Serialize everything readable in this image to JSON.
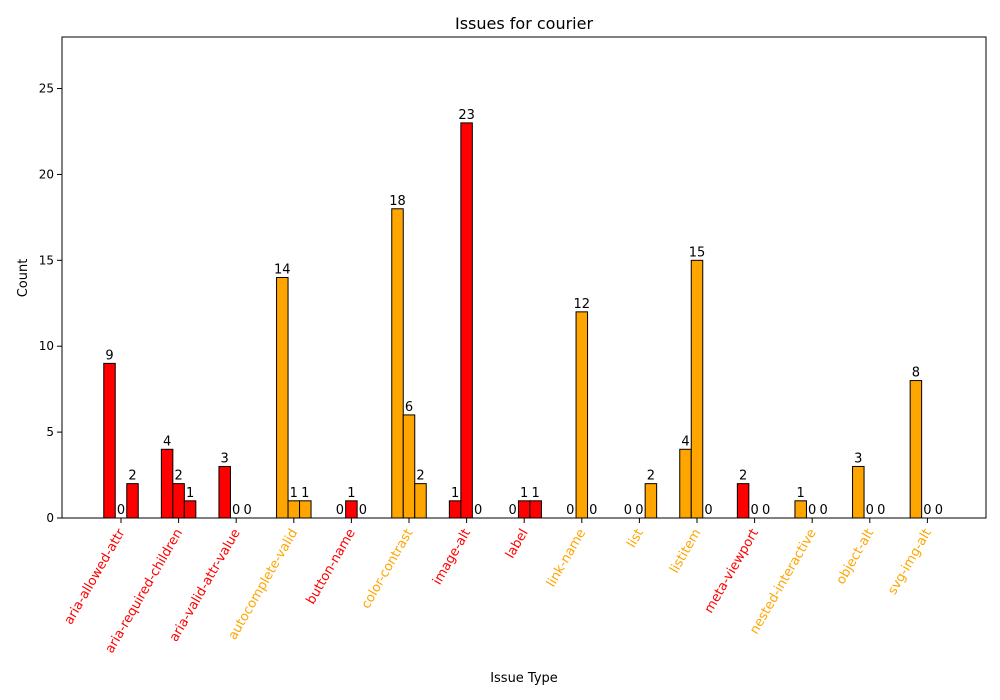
{
  "chart_data": {
    "type": "bar",
    "title": "Issues for courier",
    "xlabel": "Issue Type",
    "ylabel": "Count",
    "ylim": [
      0,
      28
    ],
    "yticks": [
      0,
      5,
      10,
      15,
      20,
      25
    ],
    "grid": false,
    "categories": [
      "aria-allowed-attr",
      "aria-required-children",
      "aria-valid-attr-value",
      "autocomplete-valid",
      "button-name",
      "color-contrast",
      "image-alt",
      "label",
      "link-name",
      "list",
      "listitem",
      "meta-viewport",
      "nested-interactive",
      "object-alt",
      "svg-img-alt"
    ],
    "category_colors": [
      "#ff0000",
      "#ff0000",
      "#ff0000",
      "#ffa500",
      "#ff0000",
      "#ffa500",
      "#ff0000",
      "#ff0000",
      "#ffa500",
      "#ffa500",
      "#ffa500",
      "#ff0000",
      "#ffa500",
      "#ffa500",
      "#ffa500"
    ],
    "series": [
      {
        "values": [
          9,
          4,
          3,
          14,
          0,
          18,
          1,
          0,
          0,
          0,
          4,
          2,
          1,
          3,
          8
        ]
      },
      {
        "values": [
          0,
          2,
          0,
          1,
          1,
          6,
          23,
          1,
          12,
          0,
          15,
          0,
          0,
          0,
          0
        ]
      },
      {
        "values": [
          2,
          1,
          0,
          1,
          0,
          2,
          0,
          1,
          0,
          2,
          0,
          0,
          0,
          0,
          0
        ]
      }
    ]
  }
}
